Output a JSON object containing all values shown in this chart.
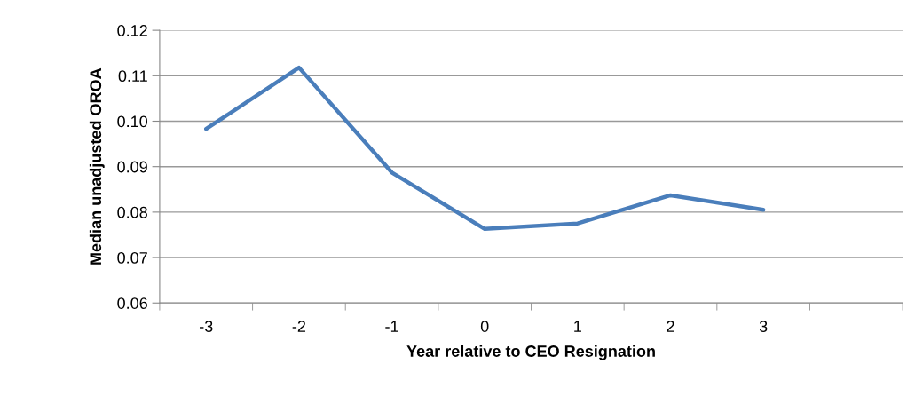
{
  "chart_data": {
    "type": "line",
    "xlabel": "Year relative to CEO Resignation",
    "ylabel": "Median unadjusted OROA",
    "categories": [
      "-3",
      "-2",
      "-1",
      "0",
      "1",
      "2",
      "3",
      null
    ],
    "series": [
      {
        "color": "#4a7ebb",
        "values": [
          0.0983,
          0.1118,
          0.0887,
          0.0763,
          0.0775,
          0.0837,
          0.0805,
          null
        ]
      }
    ],
    "ylim": [
      0.06,
      0.12
    ],
    "yticks": [
      {
        "value": 0.06,
        "label": "0.06"
      },
      {
        "value": 0.07,
        "label": "0.07"
      },
      {
        "value": 0.08,
        "label": "0.08"
      },
      {
        "value": 0.09,
        "label": "0.09"
      },
      {
        "value": 0.1,
        "label": "0.10"
      },
      {
        "value": 0.11,
        "label": "0.11"
      },
      {
        "value": 0.12,
        "label": "0.12"
      }
    ],
    "grid": "y",
    "marker": "none",
    "line_style": "solid"
  }
}
